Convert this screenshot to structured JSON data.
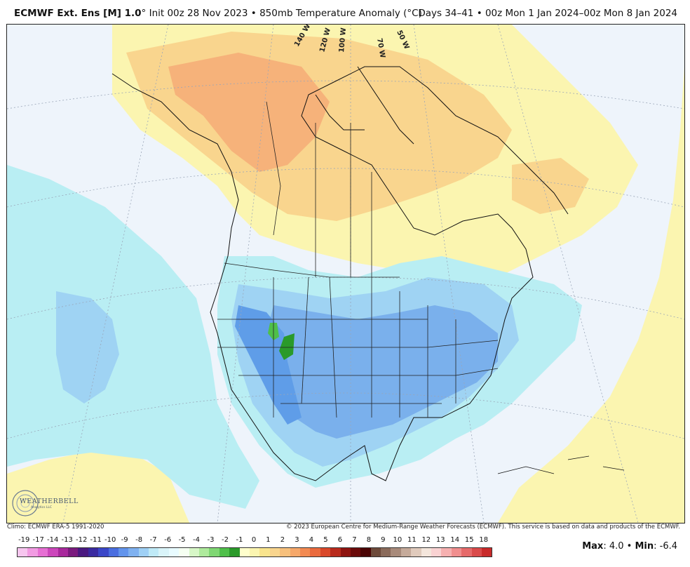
{
  "title": {
    "model": "ECMWF Ext. Ens [M] 1.0",
    "degree": "°",
    "init": "Init 00z 28 Nov 2023",
    "sep": "•",
    "variable": "850mb Temperature Anomaly (°C)",
    "period": "Days 34–41 • 00z Mon 1 Jan 2024–00z Mon 8 Jan 2024"
  },
  "map": {
    "longitude_labels": [
      "140 W",
      "120 W",
      "100 W",
      "70 W",
      "50 W"
    ],
    "colors": {
      "ocean_bg": "#eef4fb",
      "warm_light": "#fbf5b0",
      "warm_mid": "#f9d58e",
      "warm_orange": "#f6b27a",
      "cool_light": "#b9eef3",
      "cool_mid": "#9fd3f3",
      "cool_blue": "#7ab0ec",
      "cool_deep": "#5f9de8",
      "green": "#4fbf4a",
      "green_dark": "#2a9a2a"
    }
  },
  "credits": {
    "climo": "Climo: ECMWF ERA-5 1991-2020",
    "copyright": "© 2023 European Centre for Medium-Range Weather Forecasts (ECMWF). This service is based on data and products of the ECMWF."
  },
  "logo": {
    "text": "WEATHERBELL",
    "sub": "Analytics LLC"
  },
  "legend": {
    "labels": [
      "-19",
      "-17",
      "-14",
      "-13",
      "-12",
      "-11",
      "-10",
      "-9",
      "-8",
      "-7",
      "-6",
      "-5",
      "-4",
      "-3",
      "-2",
      "-1",
      "0",
      "1",
      "2",
      "3",
      "4",
      "5",
      "6",
      "7",
      "8",
      "9",
      "10",
      "11",
      "12",
      "13",
      "14",
      "15",
      "18"
    ],
    "colors": [
      "#f7c6ef",
      "#f19be2",
      "#e66fd3",
      "#cc46bb",
      "#a8289c",
      "#7a1a7e",
      "#4a1980",
      "#3a2aa0",
      "#3b47c8",
      "#4a6ee0",
      "#6294ec",
      "#7fb1f0",
      "#9fd0f5",
      "#bfeaf7",
      "#d9f4f9",
      "#e8fbff",
      "#f6fff2",
      "#d7f7c7",
      "#aeea9c",
      "#7fd773",
      "#4fbf4a",
      "#2a9a2a",
      "#ffffcc",
      "#fbf5b0",
      "#f9e48d",
      "#f9d58e",
      "#f7c07c",
      "#f6a86a",
      "#f28a52",
      "#ea6a3d",
      "#d9482a",
      "#b82a1c",
      "#8e1410",
      "#6a0a0a",
      "#4a0505",
      "#6d4a3a",
      "#8a6a5a",
      "#a88a7a",
      "#c5aa9a",
      "#e0cabc",
      "#f4e6dc",
      "#f9d2d2",
      "#f6b0b0",
      "#f08e8e",
      "#e66a6a",
      "#d94a4a",
      "#c82a2a"
    ],
    "title": ""
  },
  "stats": {
    "max_label": "Max",
    "max_value": ": 4.0",
    "sep": "•",
    "min_label": "Min",
    "min_value": ": -6.4"
  }
}
